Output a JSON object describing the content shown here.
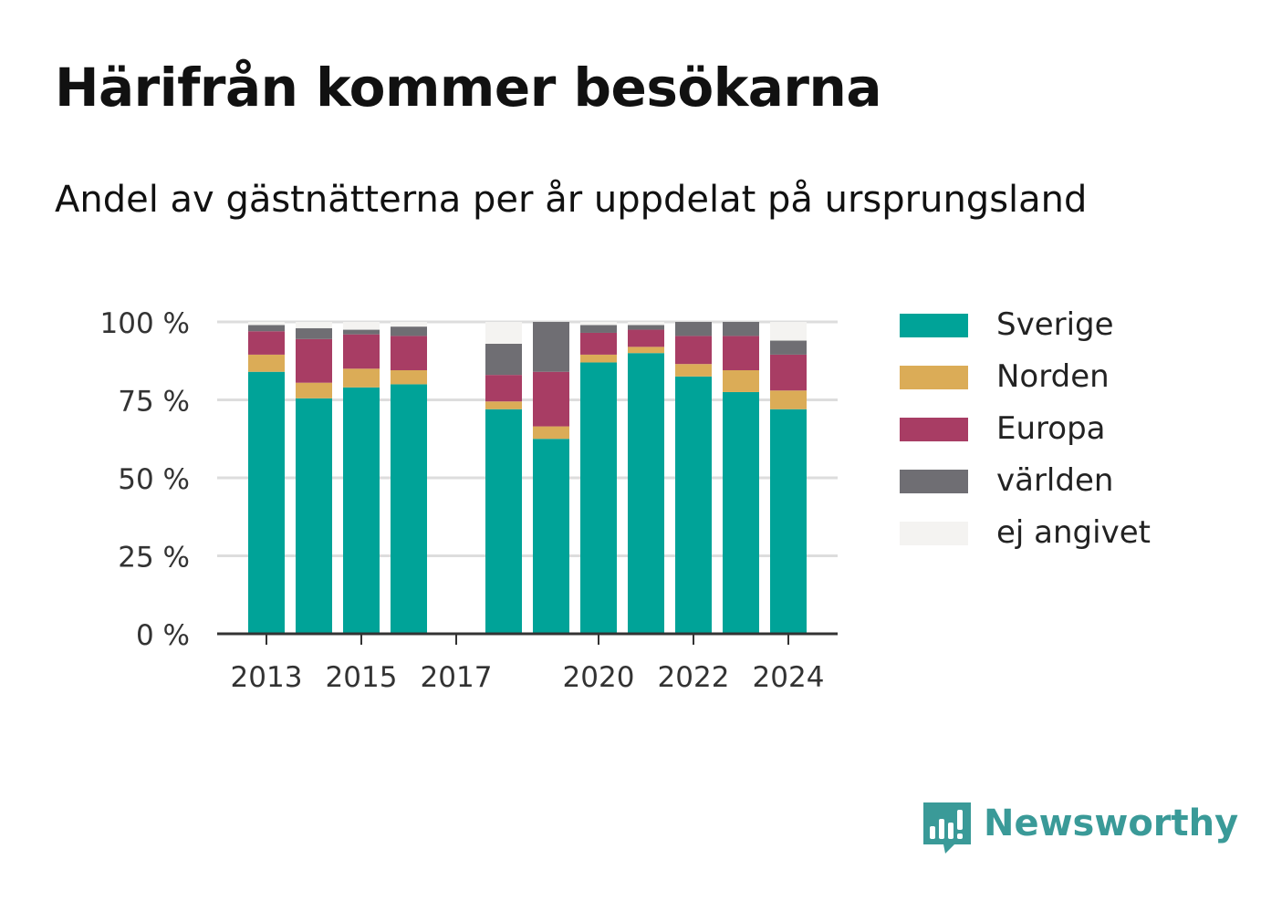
{
  "title": "Härifrån kommer besökarna",
  "subtitle": "Andel av gästnätterna per år uppdelat på ursprungsland",
  "brand": {
    "name": "Newsworthy",
    "icon": "speech-bubble-bar-chart-icon",
    "color": "#3a9a98"
  },
  "chart_data": {
    "type": "bar",
    "stacked": true,
    "categories": [
      2013,
      2014,
      2015,
      2016,
      2017,
      2018,
      2019,
      2020,
      2021,
      2022,
      2023,
      2024
    ],
    "x_tick_labels": [
      "2013",
      "2015",
      "2017",
      "2020",
      "2022",
      "2024"
    ],
    "y_tick_labels": [
      "0 %",
      "25 %",
      "50 %",
      "75 %",
      "100 %"
    ],
    "ylim": [
      0,
      100
    ],
    "grid": true,
    "legend_position": "right",
    "series": [
      {
        "name": "Sverige",
        "color": "#00a398",
        "values": [
          84,
          75.5,
          79,
          80,
          null,
          72,
          62.5,
          87,
          90,
          82.5,
          77.5,
          72
        ]
      },
      {
        "name": "Norden",
        "color": "#dbac57",
        "values": [
          5.5,
          5,
          6,
          4.5,
          null,
          2.5,
          4,
          2.5,
          2,
          4,
          7,
          6
        ]
      },
      {
        "name": "Europa",
        "color": "#a83d64",
        "values": [
          7.5,
          14,
          11,
          11,
          null,
          8.5,
          17.5,
          7,
          5.5,
          9,
          11,
          11.5
        ]
      },
      {
        "name": "världen",
        "color": "#6f6e73",
        "values": [
          2,
          3.5,
          1.5,
          3,
          null,
          10,
          16,
          2.5,
          1.5,
          4.5,
          4.5,
          4.5
        ]
      },
      {
        "name": "ej angivet",
        "color": "#f4f3f1",
        "values": [
          1,
          2,
          2.5,
          1.5,
          null,
          7,
          0,
          1,
          1,
          0,
          0,
          6
        ]
      }
    ]
  }
}
